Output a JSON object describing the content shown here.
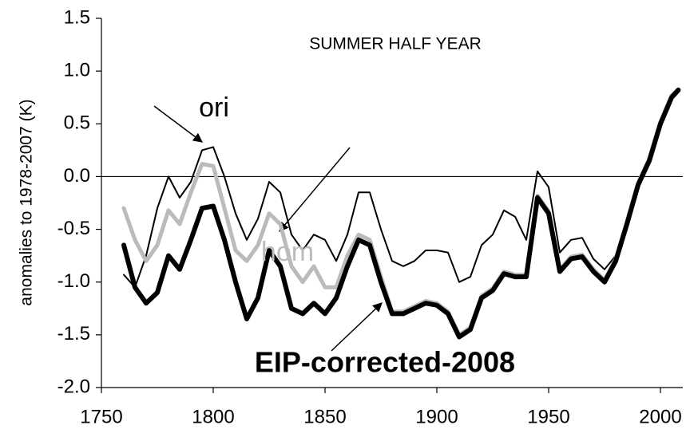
{
  "chart_data": {
    "type": "line",
    "title": "SUMMER HALF YEAR",
    "y_label": "anomalies to 1978-2007  (K)",
    "annotations": [
      "ori",
      "hom",
      "EIP-corrected-2008"
    ],
    "x": [
      1760,
      1765,
      1770,
      1775,
      1780,
      1785,
      1790,
      1795,
      1800,
      1805,
      1810,
      1815,
      1820,
      1825,
      1830,
      1835,
      1840,
      1845,
      1850,
      1855,
      1860,
      1865,
      1870,
      1875,
      1880,
      1885,
      1890,
      1895,
      1900,
      1905,
      1910,
      1915,
      1920,
      1925,
      1930,
      1935,
      1940,
      1945,
      1950,
      1955,
      1960,
      1965,
      1970,
      1975,
      1980,
      1985,
      1990,
      1995,
      2000,
      2005,
      2008
    ],
    "series": [
      {
        "name": "ori",
        "color": "#000000",
        "values": [
          -0.93,
          -1.05,
          -0.75,
          -0.3,
          0.0,
          -0.2,
          -0.05,
          0.25,
          0.28,
          0.0,
          -0.35,
          -0.6,
          -0.4,
          -0.05,
          -0.15,
          -0.55,
          -0.7,
          -0.55,
          -0.6,
          -0.8,
          -0.55,
          -0.15,
          -0.15,
          -0.5,
          -0.8,
          -0.85,
          -0.8,
          -0.7,
          -0.7,
          -0.72,
          -1.0,
          -0.95,
          -0.65,
          -0.55,
          -0.32,
          -0.38,
          -0.6,
          0.05,
          -0.1,
          -0.72,
          -0.6,
          -0.58,
          -0.78,
          -0.88,
          -0.75,
          -0.4,
          -0.05,
          0.15,
          0.5,
          0.75,
          0.82
        ]
      },
      {
        "name": "hom",
        "color": "#bbbbbb",
        "values": [
          -0.3,
          -0.6,
          -0.8,
          -0.65,
          -0.32,
          -0.45,
          -0.15,
          0.12,
          0.1,
          -0.3,
          -0.7,
          -0.8,
          -0.65,
          -0.35,
          -0.45,
          -0.85,
          -1.0,
          -0.85,
          -1.05,
          -1.05,
          -0.75,
          -0.55,
          -0.6,
          -0.95,
          -1.28,
          -1.28,
          -1.23,
          -1.18,
          -1.2,
          -1.28,
          -1.5,
          -1.43,
          -1.13,
          -1.06,
          -0.9,
          -0.93,
          -0.93,
          -0.18,
          -0.33,
          -0.88,
          -0.76,
          -0.74,
          -0.88,
          -0.98,
          -0.78,
          -0.43,
          -0.06,
          0.17,
          0.52,
          0.77,
          0.83
        ]
      },
      {
        "name": "EIP-corrected-2008",
        "color": "#000000",
        "values": [
          -0.65,
          -1.05,
          -1.2,
          -1.1,
          -0.75,
          -0.88,
          -0.6,
          -0.3,
          -0.28,
          -0.6,
          -1.0,
          -1.35,
          -1.15,
          -0.7,
          -0.85,
          -1.25,
          -1.3,
          -1.2,
          -1.3,
          -1.15,
          -0.85,
          -0.6,
          -0.65,
          -1.0,
          -1.3,
          -1.3,
          -1.25,
          -1.2,
          -1.22,
          -1.3,
          -1.52,
          -1.45,
          -1.15,
          -1.08,
          -0.92,
          -0.95,
          -0.95,
          -0.2,
          -0.35,
          -0.9,
          -0.78,
          -0.76,
          -0.9,
          -1.0,
          -0.8,
          -0.45,
          -0.08,
          0.15,
          0.5,
          0.75,
          0.82
        ]
      }
    ],
    "xlim": [
      1750,
      2010
    ],
    "xticks": [
      1750,
      1800,
      1850,
      1900,
      1950,
      2000
    ],
    "ylim": [
      -2.0,
      1.5
    ],
    "yticks": [
      1.5,
      {
        "value": 1,
        "label": "1.0"
      },
      0.5,
      {
        "value": 0,
        "label": "0.0"
      },
      -0.5,
      {
        "value": -1,
        "label": "-1.0"
      },
      -1.5,
      {
        "value": -2,
        "label": "-2.0"
      }
    ],
    "grid": false
  }
}
